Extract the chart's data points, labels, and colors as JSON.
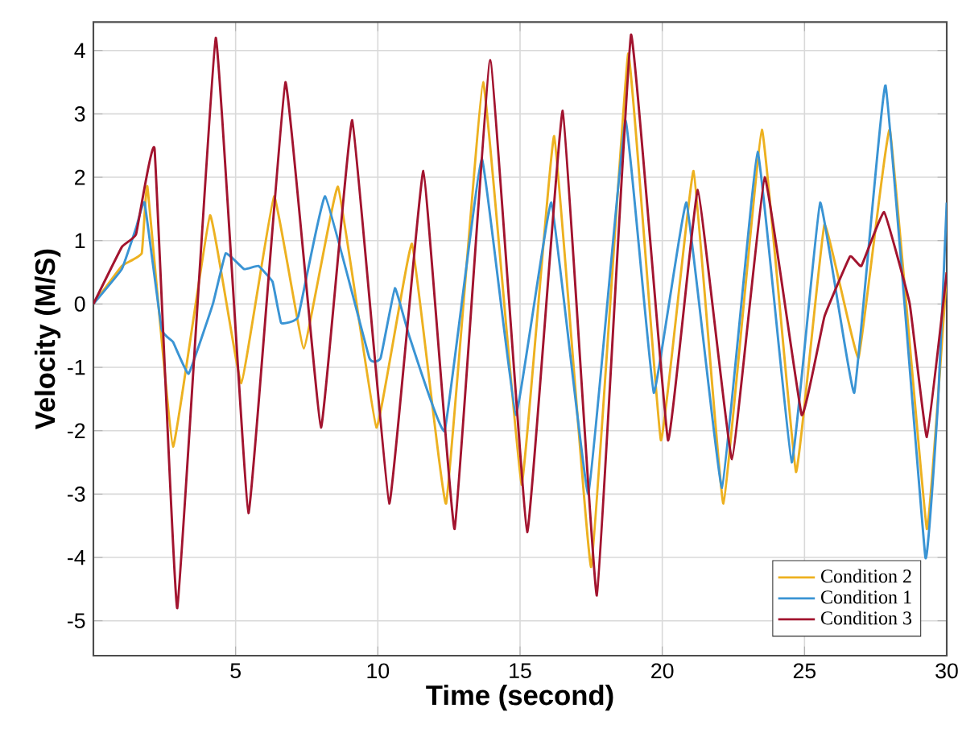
{
  "chart_data": {
    "type": "line",
    "xlabel": "Time (second)",
    "ylabel": "Velocity (M/S)",
    "xlim": [
      0,
      30
    ],
    "ylim": [
      -5.55,
      4.45
    ],
    "xticks": [
      5,
      10,
      15,
      20,
      25,
      30
    ],
    "yticks": [
      -5,
      -4,
      -3,
      -2,
      -1,
      0,
      1,
      2,
      3,
      4
    ],
    "grid": true,
    "legend": "bottom right",
    "marker": "none",
    "line_style": "solid",
    "series": [
      {
        "name": "Condition 2",
        "color": "#edb120",
        "x": [
          0,
          1,
          1.7,
          1.9,
          2.8,
          4.1,
          5.2,
          6.35,
          7.4,
          8.6,
          9.95,
          11.2,
          12.4,
          13.7,
          15.05,
          16.2,
          17.5,
          18.8,
          19.95,
          21.1,
          22.15,
          23.5,
          24.7,
          25.7,
          26.9,
          28.0,
          29.3,
          30
        ],
        "values": [
          0,
          0.6,
          0.8,
          1.85,
          -2.25,
          1.4,
          -1.25,
          1.7,
          -0.7,
          1.85,
          -1.95,
          0.95,
          -3.15,
          3.5,
          -2.85,
          2.65,
          -4.15,
          3.95,
          -2.15,
          2.1,
          -3.15,
          2.75,
          -2.65,
          1.25,
          -0.85,
          2.75,
          -3.55,
          0.5
        ]
      },
      {
        "name": "Condition 1",
        "color": "#3a94d4",
        "x": [
          0,
          1,
          1.5,
          1.8,
          2.4,
          2.8,
          3.35,
          4.2,
          4.65,
          5.3,
          5.8,
          6.3,
          6.6,
          7.2,
          8.15,
          9.7,
          10.1,
          10.6,
          11.1,
          12.35,
          13.65,
          14.85,
          16.1,
          17.4,
          18.7,
          19.7,
          20.85,
          22.1,
          23.35,
          24.55,
          25.55,
          26.75,
          27.85,
          29.25,
          29.7,
          30
        ],
        "values": [
          0,
          0.55,
          1.2,
          1.6,
          -0.4,
          -0.6,
          -1.1,
          0.0,
          0.8,
          0.55,
          0.6,
          0.35,
          -0.3,
          -0.2,
          1.7,
          -0.85,
          -0.85,
          0.25,
          -0.5,
          -2.0,
          2.3,
          -1.75,
          1.6,
          -3.0,
          2.9,
          -1.4,
          1.6,
          -2.9,
          2.4,
          -2.5,
          1.6,
          -1.4,
          3.45,
          -4.0,
          -1.5,
          1.6
        ]
      },
      {
        "name": "Condition 3",
        "color": "#a2142f",
        "x": [
          0,
          1,
          1.5,
          2.15,
          2.95,
          4.3,
          5.45,
          6.75,
          8.0,
          9.1,
          10.4,
          11.6,
          12.7,
          13.95,
          15.25,
          16.5,
          17.7,
          18.9,
          20.2,
          21.25,
          22.45,
          23.6,
          24.9,
          25.7,
          26.6,
          27.0,
          27.8,
          28.7,
          29.3,
          30
        ],
        "values": [
          0,
          0.9,
          1.1,
          2.45,
          -4.8,
          4.2,
          -3.3,
          3.5,
          -1.95,
          2.9,
          -3.15,
          2.1,
          -3.55,
          3.85,
          -3.6,
          3.05,
          -4.6,
          4.25,
          -2.15,
          1.8,
          -2.45,
          2.0,
          -1.75,
          -0.2,
          0.75,
          0.6,
          1.45,
          0.0,
          -2.1,
          0.5
        ]
      }
    ]
  }
}
